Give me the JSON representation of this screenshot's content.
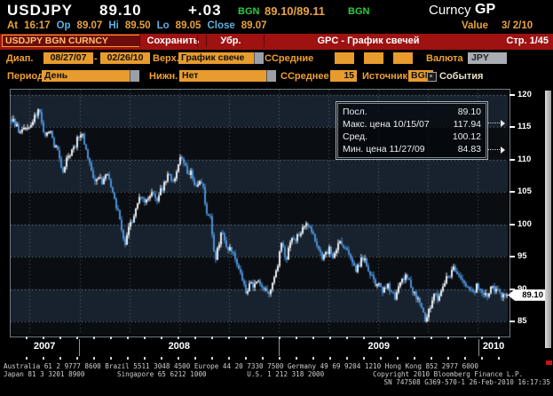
{
  "header": {
    "ticker": "USDJPY",
    "price": "89.10",
    "change": "+.03",
    "source1": "BGN",
    "bid_ask": "89.10/89.11",
    "source2": "BGN",
    "screen_label": "Curncy",
    "screen_code": "GP",
    "at_label": "At",
    "at_value": "16:17",
    "op_label": "Op",
    "op_value": "89.07",
    "hi_label": "Hi",
    "hi_value": "89.50",
    "lo_label": "Lo",
    "lo_value": "89.05",
    "close_label": "Close",
    "close_value": "89.07",
    "value_label": "Value",
    "value_date": "3/ 2/10"
  },
  "toolbar": {
    "security_input": "USDJPY BGN CURNCY",
    "save_button": "Сохранить",
    "remove_button": "Убр.",
    "title": "GPC - График свечей",
    "page": "Стр. 1/45"
  },
  "controls": {
    "range_label": "Диап.",
    "range_from": "08/27/07",
    "range_sep": "-",
    "range_to": "02/26/10",
    "upper_label": "Верх.",
    "upper_value": "График свече",
    "mavg_label": "ССредние",
    "currency_label": "Валюта",
    "currency_value": "JPY",
    "period_label": "Период",
    "period_value": "День",
    "lower_label": "Нижн.",
    "lower_value": "Нет",
    "mavg2_label": "ССреднее",
    "mavg2_value": "15",
    "source_label": "Источник",
    "source_value": "BGN",
    "events_label": "События"
  },
  "stats_box": {
    "rows": [
      {
        "label": "Посл.",
        "value": "89.10"
      },
      {
        "label": "Макс. цена 10/15/07",
        "value": "117.94"
      },
      {
        "label": "Сред.",
        "value": "100.12"
      },
      {
        "label": "Мин. цена 11/27/09",
        "value": "84.83"
      }
    ]
  },
  "chart_data": {
    "type": "candlestick",
    "title": "USDJPY BGN Curncy — GPC candlestick chart, daily",
    "start_date": "08/27/07",
    "end_date": "02/26/10",
    "last_price": 89.1,
    "max": {
      "date": "10/15/07",
      "value": 117.94
    },
    "min": {
      "date": "11/27/09",
      "value": 84.83
    },
    "average": 100.12,
    "y_ticks": [
      120,
      115,
      110,
      105,
      100,
      95,
      90,
      85
    ],
    "ylim": [
      83.0,
      121.0
    ],
    "x_year_labels": [
      "2007",
      "2008",
      "2009",
      "2010"
    ],
    "year_boundary_days": [
      127,
      493,
      858
    ],
    "total_days": 913,
    "quarter_days": [
      35,
      127,
      218,
      309,
      401,
      493,
      584,
      675,
      766,
      858
    ],
    "weekly_closes": [
      116.25,
      115.6,
      113.95,
      115.3,
      114.8,
      115.9,
      117.0,
      117.6,
      114.6,
      113.95,
      114.55,
      112.15,
      110.95,
      107.85,
      110.15,
      111.2,
      111.9,
      113.3,
      114.0,
      111.7,
      108.9,
      106.75,
      106.95,
      106.6,
      107.65,
      107.2,
      104.2,
      102.6,
      99.35,
      96.85,
      99.5,
      100.7,
      102.4,
      104.55,
      102.9,
      104.25,
      105.45,
      103.3,
      104.95,
      106.15,
      107.9,
      106.7,
      107.35,
      110.1,
      109.6,
      108.05,
      107.75,
      106.0,
      107.15,
      105.35,
      101.5,
      100.55,
      93.9,
      97.25,
      99.0,
      96.15,
      95.95,
      95.5,
      92.95,
      91.15,
      88.95,
      90.75,
      90.3,
      91.1,
      89.75,
      90.45,
      89.1,
      91.95,
      93.65,
      97.6,
      94.3,
      96.85,
      98.1,
      97.9,
      99.15,
      100.35,
      99.7,
      98.2,
      96.6,
      95.3,
      94.8,
      96.35,
      94.95,
      96.4,
      97.75,
      96.3,
      95.85,
      94.35,
      92.6,
      94.1,
      94.85,
      93.5,
      92.2,
      90.5,
      91.3,
      89.65,
      90.9,
      89.4,
      88.9,
      90.1,
      91.85,
      92.3,
      90.55,
      89.2,
      88.7,
      86.6,
      84.95,
      87.5,
      89.35,
      88.45,
      90.15,
      91.6,
      92.4,
      93.1,
      92.15,
      90.8,
      91.1,
      90.2,
      89.45,
      90.7,
      89.9,
      88.95,
      89.6,
      90.35,
      89.7,
      89.05,
      88.8,
      89.1
    ],
    "colors": {
      "candle_up": "#e8edf2",
      "candle_down": "#4a8fd4",
      "band_light": "#18222e",
      "band_dark": "#0a0e13",
      "grid": "rgba(210,220,230,0.55)"
    },
    "legend_position": "top-right",
    "grid": true
  },
  "footer": {
    "line1": "Australia 61 2 9777 8600 Brazil 5511 3048 4500 Europe 44 20 7330 7500 Germany 49 69 9204 1210 Hong Kong 852 2977 6000",
    "line2": "Japan 81 3 3201 8900        Singapore 65 6212 1000          U.S. 1 212 318 2000            Copyright 2010 Bloomberg Finance L.P.",
    "line3": "SN 747508 G369-570-1 26-Feb-2010 16:17:35"
  }
}
